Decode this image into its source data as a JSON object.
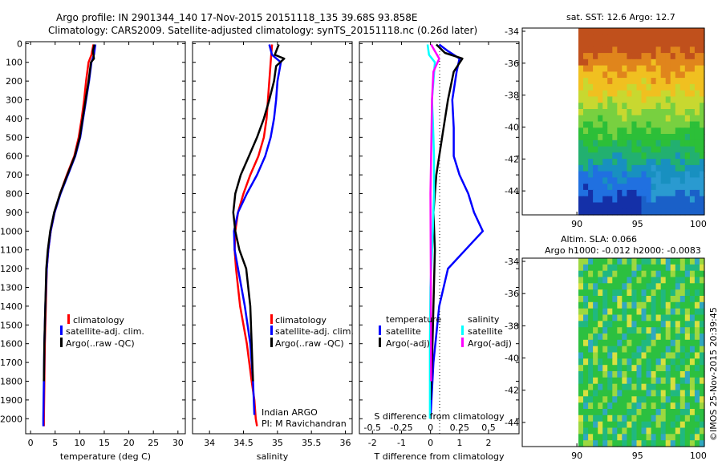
{
  "title": {
    "line1": "Argo profile: IN 2901344_140 17-Nov-2015 20151118_135 39.68S 93.858E",
    "line2": "Climatology: CARS2009. Satellite-adjusted climatology: synTS_20151118.nc (0.26d later)"
  },
  "depth_ticks": [
    "0",
    "100",
    "200",
    "300",
    "400",
    "500",
    "600",
    "700",
    "800",
    "900",
    "1000",
    "1100",
    "1200",
    "1300",
    "1400",
    "1500",
    "1600",
    "1700",
    "1800",
    "1900",
    "2000"
  ],
  "colors": {
    "climatology": "#ff0000",
    "satellite": "#0000ff",
    "argo": "#000000",
    "sal_satellite": "#00ffff",
    "sal_argo": "#ff00ff",
    "sst_bg": "#28c32c"
  },
  "legend": {
    "climatology": "climatology",
    "satellite": "satellite-adj. clim.",
    "argo": "Argo(..raw -QC)",
    "diff_temperature": "temperature",
    "diff_salinity": "salinity",
    "diff_satellite": "satellite",
    "diff_argo": "Argo(-adj)"
  },
  "annotation": {
    "line1": "Indian ARGO",
    "line2": "PI: M Ravichandran"
  },
  "map_titles": {
    "sst": "sat. SST: 12.6 Argo: 12.7",
    "sla1": "Altim. SLA: 0.066",
    "sla2": "Argo h1000: -0.012 h2000: -0.0083"
  },
  "credit": "©IMOS 25-Nov-2015 20:39:45",
  "chart_data": [
    {
      "type": "line",
      "name": "temperature-profile",
      "xlabel": "temperature (deg C)",
      "xlim": [
        -1,
        31.5
      ],
      "ylim": [
        2080,
        -10
      ],
      "xticks": [
        "0",
        "5",
        "10",
        "15",
        "20",
        "25",
        "30"
      ],
      "series": [
        {
          "name": "climatology",
          "color": "#ff0000",
          "x": [
            12.8,
            12.4,
            11.8,
            11.3,
            10.9,
            10.4,
            9.8,
            8.9,
            7.4,
            6.0,
            4.9,
            4.1,
            3.6,
            3.3,
            3.1,
            2.9,
            2.8,
            2.7,
            2.7
          ],
          "y": [
            5,
            60,
            100,
            200,
            300,
            400,
            500,
            600,
            700,
            800,
            900,
            1000,
            1100,
            1200,
            1400,
            1600,
            1800,
            2000,
            2040
          ]
        },
        {
          "name": "satellite-adj. clim.",
          "color": "#0000ff",
          "x": [
            13.2,
            12.9,
            12.4,
            11.9,
            11.3,
            10.7,
            10.1,
            9.1,
            7.6,
            6.1,
            4.9,
            4.1,
            3.6,
            3.3,
            3.0,
            2.8,
            2.7,
            2.6,
            2.6
          ],
          "y": [
            5,
            60,
            100,
            200,
            300,
            400,
            500,
            600,
            700,
            800,
            900,
            1000,
            1100,
            1200,
            1400,
            1600,
            1800,
            2000,
            2040
          ]
        },
        {
          "name": "Argo(..raw -QC)",
          "color": "#000000",
          "x": [
            13.0,
            12.7,
            12.9,
            12.3,
            11.8,
            11.2,
            10.6,
            10.0,
            9.0,
            7.5,
            6.0,
            4.8,
            4.0,
            3.5,
            3.2,
            3.0,
            2.8,
            2.7
          ],
          "y": [
            5,
            40,
            80,
            100,
            200,
            300,
            400,
            500,
            600,
            700,
            800,
            900,
            1000,
            1100,
            1200,
            1400,
            1600,
            1800
          ]
        }
      ]
    },
    {
      "type": "line",
      "name": "salinity-profile",
      "xlabel": "salinity",
      "xlim": [
        33.75,
        36.1
      ],
      "ylim": [
        2080,
        -10
      ],
      "xticks": [
        "34",
        "34.5",
        "35",
        "35.5",
        "36"
      ],
      "series": [
        {
          "name": "climatology",
          "color": "#ff0000",
          "x": [
            34.92,
            34.9,
            34.88,
            34.86,
            34.84,
            34.8,
            34.72,
            34.6,
            34.5,
            34.42,
            34.38,
            34.37,
            34.39,
            34.45,
            34.55,
            34.62,
            34.66,
            34.68,
            34.7
          ],
          "y": [
            5,
            100,
            200,
            300,
            400,
            500,
            600,
            700,
            800,
            900,
            1000,
            1100,
            1200,
            1400,
            1600,
            1800,
            1900,
            2000,
            2040
          ]
        },
        {
          "name": "satellite-adj. clim.",
          "color": "#0000ff",
          "x": [
            34.88,
            34.92,
            35.05,
            35.0,
            34.98,
            34.95,
            34.9,
            34.82,
            34.7,
            34.55,
            34.42,
            34.36,
            34.37,
            34.42,
            34.52,
            34.6,
            34.64,
            34.66
          ],
          "y": [
            5,
            60,
            100,
            200,
            300,
            400,
            500,
            600,
            700,
            800,
            900,
            1000,
            1100,
            1200,
            1400,
            1600,
            1800,
            1980
          ]
        },
        {
          "name": "Argo(..raw -QC)",
          "color": "#000000",
          "x": [
            35.02,
            34.96,
            35.1,
            34.98,
            34.95,
            34.88,
            34.8,
            34.7,
            34.58,
            34.46,
            34.38,
            34.35,
            34.38,
            34.44,
            34.54,
            34.6,
            34.64
          ],
          "y": [
            5,
            60,
            80,
            120,
            200,
            300,
            400,
            500,
            600,
            700,
            800,
            900,
            1000,
            1100,
            1200,
            1400,
            1800
          ]
        }
      ]
    },
    {
      "type": "line",
      "name": "difference-profile",
      "xlabel": "T difference from climatology",
      "xlim": [
        -2.45,
        3.05
      ],
      "ylim": [
        2080,
        -10
      ],
      "xticks": [
        "-2",
        "-1",
        "0",
        "1",
        "2"
      ],
      "secondary_xlabel": "S difference from climatology",
      "secondary_xticks": [
        "-0.5",
        "-0.25",
        "0",
        "0.25",
        "0.5"
      ],
      "secondary_xlim": [
        -0.6125,
        0.7625
      ],
      "series": [
        {
          "name": "temperature satellite",
          "color": "#0000ff",
          "x": [
            0.3,
            0.6,
            1.0,
            0.9,
            0.75,
            0.8,
            0.8,
            1.0,
            1.3,
            1.5,
            1.8,
            1.2,
            0.6,
            0.3,
            0.1,
            0.0
          ],
          "y": [
            5,
            40,
            80,
            150,
            300,
            450,
            600,
            700,
            800,
            900,
            1000,
            1100,
            1200,
            1400,
            1700,
            2000
          ]
        },
        {
          "name": "temperature Argo(-adj)",
          "color": "#000000",
          "x": [
            0.2,
            0.5,
            1.1,
            0.8,
            0.6,
            0.4,
            0.2,
            0.1,
            0.15,
            0.1,
            0.05,
            0.0
          ],
          "y": [
            5,
            50,
            80,
            150,
            300,
            500,
            700,
            900,
            1100,
            1400,
            1700,
            1900
          ]
        },
        {
          "name": "salinity satellite",
          "color": "#00ffff",
          "x": [
            -0.1,
            -0.05,
            0.15,
            0.1,
            0.05,
            0.08,
            0.1,
            0.12,
            0.12,
            0.08,
            0.0,
            -0.02,
            -0.02
          ],
          "y": [
            5,
            60,
            100,
            200,
            300,
            400,
            500,
            600,
            800,
            1000,
            1300,
            1600,
            2000
          ]
        },
        {
          "name": "salinity Argo(-adj)",
          "color": "#ff00ff",
          "x": [
            0.02,
            0.15,
            0.3,
            0.1,
            0.05,
            0.02,
            0.0,
            0.01,
            0.02
          ],
          "y": [
            5,
            40,
            80,
            150,
            300,
            600,
            800,
            1200,
            1800
          ]
        }
      ]
    },
    {
      "type": "heatmap",
      "name": "sst-map",
      "title": "sat. SST: 12.6 Argo: 12.7",
      "xlim": [
        85.5,
        100.5
      ],
      "ylim": [
        -45.5,
        -33.8
      ],
      "xticks": [
        "90",
        "95",
        "100"
      ],
      "yticks": [
        "-34",
        "-36",
        "-38",
        "-40",
        "-42",
        "-44"
      ]
    },
    {
      "type": "heatmap",
      "name": "sla-map",
      "title": "Altim. SLA: 0.066",
      "xlim": [
        85.5,
        100.5
      ],
      "ylim": [
        -45.5,
        -33.8
      ],
      "xticks": [
        "90",
        "95",
        "100"
      ],
      "yticks": [
        "-34",
        "-36",
        "-38",
        "-40",
        "-42",
        "-44"
      ]
    }
  ]
}
